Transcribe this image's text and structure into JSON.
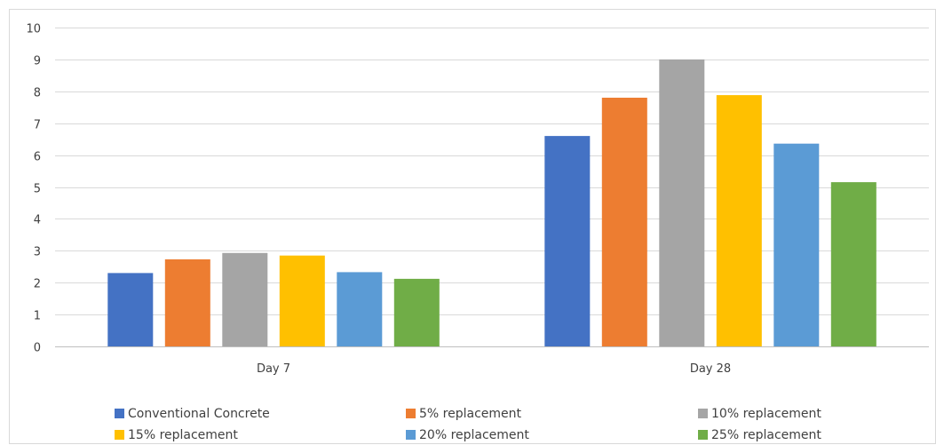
{
  "chart_data": {
    "type": "bar",
    "title": "",
    "xlabel": "",
    "ylabel": "",
    "categories": [
      "Day 7",
      "Day 28"
    ],
    "ylim": [
      0,
      10
    ],
    "yticks": [
      "0",
      "1",
      "2",
      "3",
      "4",
      "5",
      "6",
      "7",
      "8",
      "9",
      "10"
    ],
    "grid": true,
    "legend_position": "bottom",
    "series": [
      {
        "name": "Conventional Concrete",
        "color": "#4472C4",
        "values": [
          2.3,
          6.6
        ]
      },
      {
        "name": "5% replacement",
        "color": "#ED7D31",
        "values": [
          2.73,
          7.8
        ]
      },
      {
        "name": "10% replacement",
        "color": "#A5A5A5",
        "values": [
          2.93,
          9.0
        ]
      },
      {
        "name": "15% replacement",
        "color": "#FFC000",
        "values": [
          2.85,
          7.88
        ]
      },
      {
        "name": "20% replacement",
        "color": "#5B9BD5",
        "values": [
          2.33,
          6.36
        ]
      },
      {
        "name": "25% replacement",
        "color": "#70AD47",
        "values": [
          2.12,
          5.15
        ]
      }
    ]
  }
}
